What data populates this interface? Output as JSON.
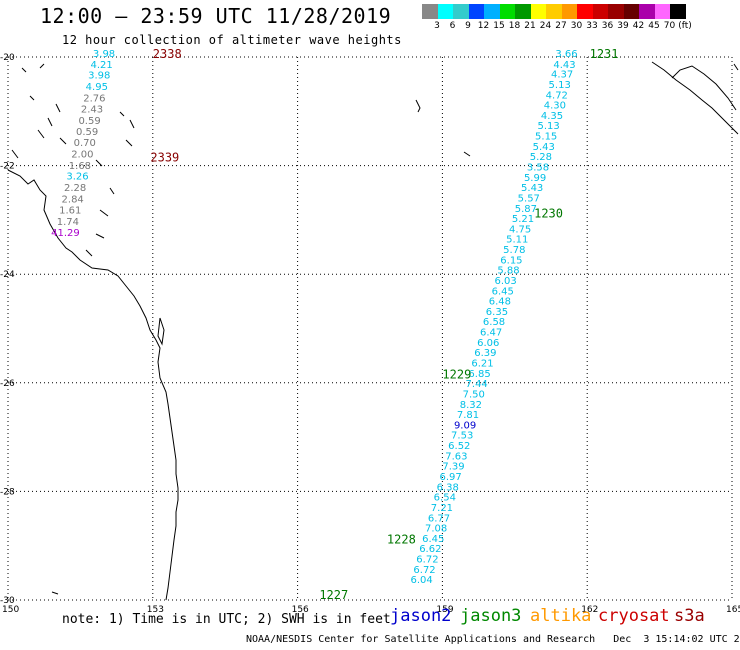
{
  "header": {
    "title": "12:00 — 23:59 UTC 11/28/2019",
    "subtitle": "12 hour collection of altimeter wave heights"
  },
  "colorbar": {
    "colors": [
      "#888888",
      "#00ffff",
      "#33cccc",
      "#0044ff",
      "#00b0ff",
      "#00dd00",
      "#009900",
      "#ffff00",
      "#ffcc00",
      "#ff9900",
      "#ff0000",
      "#cc0000",
      "#990000",
      "#660000",
      "#aa00aa",
      "#ff66ff",
      "#000000"
    ],
    "labels": [
      "3",
      "6",
      "9",
      "12",
      "15",
      "18",
      "21",
      "24",
      "27",
      "30",
      "33",
      "36",
      "39",
      "42",
      "45",
      "70",
      "(ft)"
    ]
  },
  "map": {
    "lon_ticks": [
      "150",
      "153",
      "156",
      "159",
      "162",
      "165"
    ],
    "lat_ticks": [
      "-20",
      "-22",
      "-24",
      "-26",
      "-28",
      "-30"
    ],
    "lon_range": [
      150,
      165
    ],
    "lat_range": [
      -20,
      -30
    ]
  },
  "colors": {
    "gray": "#777777",
    "cyan": "#00bfe6",
    "blue": "#0000cc",
    "purple": "#aa00cc",
    "dark_green": "#007700",
    "dark_red": "#880000",
    "coast": "#000000"
  },
  "track_west": {
    "time_labels": [
      {
        "text": "2338",
        "lon": 153.0,
        "lat": -20.02,
        "color": "dark_red"
      },
      {
        "text": "2339",
        "lon": 152.95,
        "lat": -21.92,
        "color": "dark_red"
      }
    ],
    "points": [
      {
        "v": "3.98",
        "lon": 151.99,
        "lat": -20.0,
        "c": "cyan"
      },
      {
        "v": "4.21",
        "lon": 151.94,
        "lat": -20.2,
        "c": "cyan"
      },
      {
        "v": "3.98",
        "lon": 151.89,
        "lat": -20.4,
        "c": "cyan"
      },
      {
        "v": "4.95",
        "lon": 151.84,
        "lat": -20.61,
        "c": "cyan"
      },
      {
        "v": "2.76",
        "lon": 151.79,
        "lat": -20.82,
        "c": "gray"
      },
      {
        "v": "2.43",
        "lon": 151.74,
        "lat": -21.02,
        "c": "gray"
      },
      {
        "v": "0.59",
        "lon": 151.69,
        "lat": -21.23,
        "c": "gray"
      },
      {
        "v": "0.59",
        "lon": 151.64,
        "lat": -21.44,
        "c": "gray"
      },
      {
        "v": "0.70",
        "lon": 151.59,
        "lat": -21.64,
        "c": "gray"
      },
      {
        "v": "2.00",
        "lon": 151.54,
        "lat": -21.85,
        "c": "gray"
      },
      {
        "v": "1.68",
        "lon": 151.49,
        "lat": -22.06,
        "c": "gray"
      },
      {
        "v": "3.26",
        "lon": 151.44,
        "lat": -22.26,
        "c": "cyan"
      },
      {
        "v": "2.28",
        "lon": 151.39,
        "lat": -22.47,
        "c": "gray"
      },
      {
        "v": "2.84",
        "lon": 151.34,
        "lat": -22.68,
        "c": "gray"
      },
      {
        "v": "1.61",
        "lon": 151.29,
        "lat": -22.88,
        "c": "gray"
      },
      {
        "v": "1.74",
        "lon": 151.24,
        "lat": -23.09,
        "c": "gray"
      },
      {
        "v": "41.29",
        "lon": 151.19,
        "lat": -23.3,
        "c": "purple"
      }
    ]
  },
  "track_east": {
    "time_labels": [
      {
        "text": "1231",
        "lon": 162.05,
        "lat": -20.02,
        "color": "dark_green"
      },
      {
        "text": "1230",
        "lon": 160.9,
        "lat": -22.96,
        "color": "dark_green"
      },
      {
        "text": "1229",
        "lon": 159.0,
        "lat": -25.92,
        "color": "dark_green"
      },
      {
        "text": "1228",
        "lon": 157.85,
        "lat": -28.96,
        "color": "dark_green"
      },
      {
        "text": "1227",
        "lon": 156.45,
        "lat": -29.98,
        "color": "dark_green"
      }
    ],
    "points": [
      {
        "v": "3.66",
        "lon": 161.57,
        "lat": -20.0,
        "c": "cyan"
      },
      {
        "v": "4.43",
        "lon": 161.53,
        "lat": -20.2,
        "c": "cyan"
      },
      {
        "v": "4.37",
        "lon": 161.48,
        "lat": -20.38,
        "c": "cyan"
      },
      {
        "v": "5.13",
        "lon": 161.43,
        "lat": -20.57,
        "c": "cyan"
      },
      {
        "v": "4.72",
        "lon": 161.37,
        "lat": -20.76,
        "c": "cyan"
      },
      {
        "v": "4.30",
        "lon": 161.33,
        "lat": -20.95,
        "c": "cyan"
      },
      {
        "v": "4.35",
        "lon": 161.27,
        "lat": -21.14,
        "c": "cyan"
      },
      {
        "v": "5.13",
        "lon": 161.2,
        "lat": -21.33,
        "c": "cyan"
      },
      {
        "v": "5.15",
        "lon": 161.15,
        "lat": -21.52,
        "c": "cyan"
      },
      {
        "v": "5.43",
        "lon": 161.1,
        "lat": -21.71,
        "c": "cyan"
      },
      {
        "v": "5.28",
        "lon": 161.04,
        "lat": -21.9,
        "c": "cyan"
      },
      {
        "v": "3.58",
        "lon": 160.98,
        "lat": -22.09,
        "c": "cyan"
      },
      {
        "v": "5.99",
        "lon": 160.92,
        "lat": -22.28,
        "c": "cyan"
      },
      {
        "v": "5.43",
        "lon": 160.86,
        "lat": -22.47,
        "c": "cyan"
      },
      {
        "v": "5.57",
        "lon": 160.79,
        "lat": -22.66,
        "c": "cyan"
      },
      {
        "v": "5.87",
        "lon": 160.73,
        "lat": -22.85,
        "c": "cyan"
      },
      {
        "v": "5.21",
        "lon": 160.67,
        "lat": -23.04,
        "c": "cyan"
      },
      {
        "v": "4.75",
        "lon": 160.61,
        "lat": -23.23,
        "c": "cyan"
      },
      {
        "v": "5.11",
        "lon": 160.55,
        "lat": -23.42,
        "c": "cyan"
      },
      {
        "v": "5.78",
        "lon": 160.49,
        "lat": -23.61,
        "c": "cyan"
      },
      {
        "v": "6.15",
        "lon": 160.43,
        "lat": -23.8,
        "c": "cyan"
      },
      {
        "v": "5.88",
        "lon": 160.37,
        "lat": -23.99,
        "c": "cyan"
      },
      {
        "v": "6.03",
        "lon": 160.31,
        "lat": -24.18,
        "c": "cyan"
      },
      {
        "v": "6.45",
        "lon": 160.25,
        "lat": -24.37,
        "c": "cyan"
      },
      {
        "v": "6.48",
        "lon": 160.19,
        "lat": -24.56,
        "c": "cyan"
      },
      {
        "v": "6.35",
        "lon": 160.13,
        "lat": -24.75,
        "c": "cyan"
      },
      {
        "v": "6.58",
        "lon": 160.07,
        "lat": -24.94,
        "c": "cyan"
      },
      {
        "v": "6.47",
        "lon": 160.01,
        "lat": -25.13,
        "c": "cyan"
      },
      {
        "v": "6.06",
        "lon": 159.95,
        "lat": -25.32,
        "c": "cyan"
      },
      {
        "v": "6.39",
        "lon": 159.89,
        "lat": -25.51,
        "c": "cyan"
      },
      {
        "v": "6.21",
        "lon": 159.83,
        "lat": -25.7,
        "c": "cyan"
      },
      {
        "v": "6.85",
        "lon": 159.77,
        "lat": -25.89,
        "c": "cyan"
      },
      {
        "v": "7.44",
        "lon": 159.71,
        "lat": -26.08,
        "c": "cyan"
      },
      {
        "v": "7.50",
        "lon": 159.65,
        "lat": -26.27,
        "c": "cyan"
      },
      {
        "v": "8.32",
        "lon": 159.59,
        "lat": -26.46,
        "c": "cyan"
      },
      {
        "v": "7.81",
        "lon": 159.53,
        "lat": -26.65,
        "c": "cyan"
      },
      {
        "v": "9.09",
        "lon": 159.47,
        "lat": -26.84,
        "c": "blue"
      },
      {
        "v": "7.53",
        "lon": 159.41,
        "lat": -27.03,
        "c": "cyan"
      },
      {
        "v": "6.52",
        "lon": 159.35,
        "lat": -27.22,
        "c": "cyan"
      },
      {
        "v": "7.63",
        "lon": 159.29,
        "lat": -27.41,
        "c": "cyan"
      },
      {
        "v": "7.39",
        "lon": 159.23,
        "lat": -27.6,
        "c": "cyan"
      },
      {
        "v": "6.97",
        "lon": 159.17,
        "lat": -27.79,
        "c": "cyan"
      },
      {
        "v": "6.38",
        "lon": 159.11,
        "lat": -27.98,
        "c": "cyan"
      },
      {
        "v": "6.54",
        "lon": 159.05,
        "lat": -28.17,
        "c": "cyan"
      },
      {
        "v": "7.21",
        "lon": 158.99,
        "lat": -28.36,
        "c": "cyan"
      },
      {
        "v": "6.77",
        "lon": 158.93,
        "lat": -28.55,
        "c": "cyan"
      },
      {
        "v": "7.08",
        "lon": 158.87,
        "lat": -28.74,
        "c": "cyan"
      },
      {
        "v": "6.45",
        "lon": 158.81,
        "lat": -28.93,
        "c": "cyan"
      },
      {
        "v": "6.62",
        "lon": 158.75,
        "lat": -29.12,
        "c": "cyan"
      },
      {
        "v": "6.72",
        "lon": 158.69,
        "lat": -29.31,
        "c": "cyan"
      },
      {
        "v": "6.72",
        "lon": 158.63,
        "lat": -29.5,
        "c": "cyan"
      },
      {
        "v": "6.04",
        "lon": 158.57,
        "lat": -29.69,
        "c": "cyan"
      }
    ]
  },
  "note": "note: 1) Time is in UTC; 2) SWH is in feet",
  "legend": [
    {
      "name": "jason2",
      "color": "#0000cc"
    },
    {
      "name": "jason3",
      "color": "#008800"
    },
    {
      "name": "altika",
      "color": "#ff9900"
    },
    {
      "name": "cryosat",
      "color": "#cc0000"
    },
    {
      "name": "s3a",
      "color": "#990000"
    }
  ],
  "footer": "NOAA/NESDIS Center for Satellite Applications and Research   Dec  3 15:14:02 UTC 2019"
}
